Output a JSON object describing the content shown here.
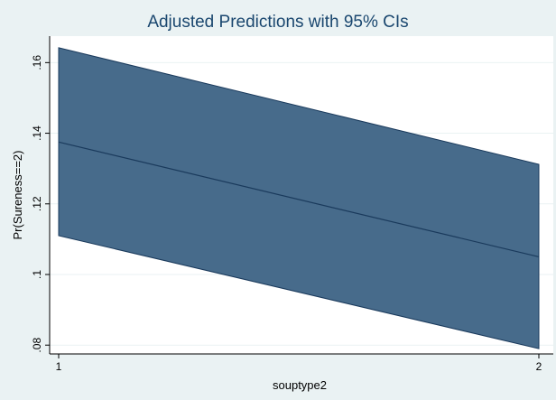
{
  "chart_data": {
    "type": "area",
    "title": "Adjusted Predictions with 95% CIs",
    "xlabel": "souptype2",
    "ylabel": "Pr(Sureness==2)",
    "x": [
      1,
      2
    ],
    "xticks": [
      "1",
      "2"
    ],
    "yticks": [
      ".08",
      ".1",
      ".12",
      ".14",
      ".16"
    ],
    "ytick_values": [
      0.08,
      0.1,
      0.12,
      0.14,
      0.16
    ],
    "xlim": [
      1,
      2
    ],
    "ylim": [
      0.0775,
      0.1675
    ],
    "grid": true,
    "series": [
      {
        "type": "line",
        "values": [
          0.1375,
          0.105
        ]
      },
      {
        "type": "band",
        "lower": [
          0.111,
          0.079
        ],
        "upper": [
          0.1642,
          0.1312
        ]
      }
    ],
    "colors": {
      "band_fill": "#476b8b",
      "line": "#1a3a5c",
      "plot_bg": "#ffffff",
      "outer_bg": "#eaf2f3",
      "grid": "#eaf2f3",
      "title": "#1a476f"
    }
  }
}
